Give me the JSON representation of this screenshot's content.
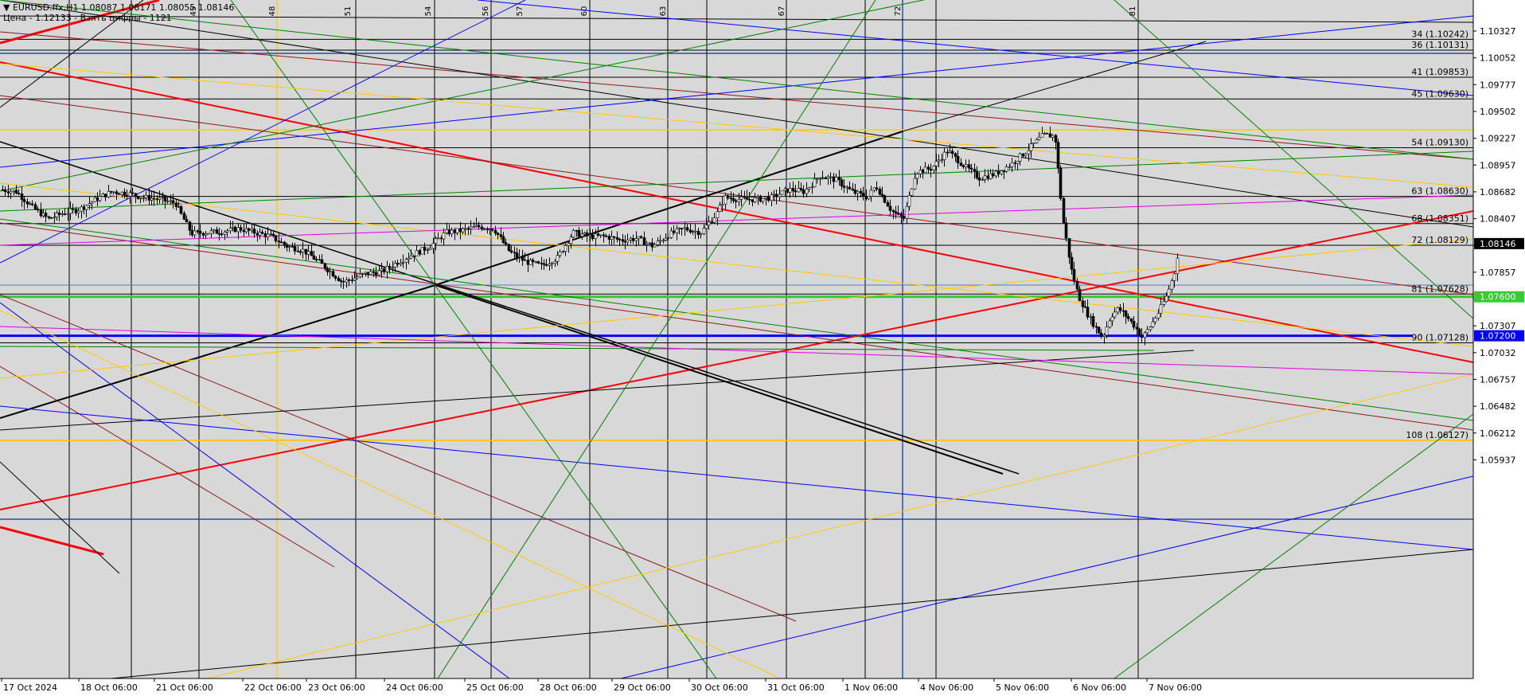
{
  "header": {
    "symbol_line": "▼ EURUSD.ffx,H1  1.08087 1.08171 1.08055 1.08146",
    "price_line": "Цена - 1.12133 - Взять цифры - 1121"
  },
  "colors": {
    "plot_bg": "#d8d8d8",
    "scale_bg": "#ffffff",
    "grid": "#000000",
    "bull_candle": "#000000",
    "bear_candle": "#000000",
    "red": "#ff0000",
    "darkred": "#8b1a1a",
    "blue": "#0000ff",
    "navy": "#003399",
    "green": "#008000",
    "lime": "#33cc33",
    "yellow": "#ffcc00",
    "magenta": "#e000e0",
    "black": "#000000"
  },
  "chart_data": {
    "type": "candlestick",
    "symbol": "EURUSD.ffx",
    "timeframe": "H1",
    "last_bar": {
      "open": 1.08087,
      "high": 1.08171,
      "low": 1.08055,
      "close": 1.08146
    },
    "current_price_label": "1.08146",
    "price_axis_ticks": [
      "1.10327",
      "1.10052",
      "1.09777",
      "1.09502",
      "1.09227",
      "1.08957",
      "1.08682",
      "1.08407",
      "1.08132",
      "1.07857",
      "1.07582",
      "1.07307",
      "1.07032",
      "1.06757",
      "1.06482",
      "1.06212",
      "1.05937"
    ],
    "ylim": [
      1.058,
      1.106
    ],
    "time_axis_labels": [
      "17 Oct 2024",
      "18 Oct 06:00",
      "21 Oct 06:00",
      "22 Oct 06:00",
      "23 Oct 06:00",
      "24 Oct 06:00",
      "25 Oct 06:00",
      "28 Oct 06:00",
      "29 Oct 06:00",
      "30 Oct 06:00",
      "31 Oct 06:00",
      "1 Nov 06:00",
      "4 Nov 06:00",
      "5 Nov 06:00",
      "6 Nov 06:00",
      "7 Nov 06:00"
    ],
    "top_labels": [
      "45",
      "48",
      "51",
      "54",
      "56",
      "57",
      "60",
      "63",
      "67",
      "72",
      "81"
    ],
    "level_labels": [
      {
        "text": "34 (1.10242)",
        "price": 1.10242
      },
      {
        "text": "36 (1.10131)",
        "price": 1.10131
      },
      {
        "text": "41 (1.09853)",
        "price": 1.09853
      },
      {
        "text": "45 (1.09630)",
        "price": 1.0963
      },
      {
        "text": "54 (1.09130)",
        "price": 1.0913
      },
      {
        "text": "63 (1.08630)",
        "price": 1.0863
      },
      {
        "text": "68 (1.08351)",
        "price": 1.08351
      },
      {
        "text": "72 (1.08129)",
        "price": 1.08129
      },
      {
        "text": "81 (1.07628)",
        "price": 1.07628
      },
      {
        "text": "90 (1.07128)",
        "price": 1.07128
      },
      {
        "text": "108 (1.06127)",
        "price": 1.06127
      }
    ],
    "marked_levels": [
      {
        "text": "1.07600",
        "price": 1.076,
        "color": "lime"
      },
      {
        "text": "1.07200",
        "price": 1.072,
        "color": "blue"
      }
    ],
    "close_path": [
      [
        0,
        1.087
      ],
      [
        20,
        1.0868
      ],
      [
        40,
        1.0852
      ],
      [
        60,
        1.084
      ],
      [
        80,
        1.0846
      ],
      [
        100,
        1.085
      ],
      [
        120,
        1.086
      ],
      [
        140,
        1.0868
      ],
      [
        160,
        1.0866
      ],
      [
        180,
        1.0862
      ],
      [
        200,
        1.086
      ],
      [
        220,
        1.0856
      ],
      [
        240,
        1.0825
      ],
      [
        260,
        1.0826
      ],
      [
        280,
        1.0827
      ],
      [
        300,
        1.083
      ],
      [
        320,
        1.0826
      ],
      [
        340,
        1.0822
      ],
      [
        360,
        1.0812
      ],
      [
        380,
        1.0808
      ],
      [
        400,
        1.0796
      ],
      [
        420,
        1.0782
      ],
      [
        430,
        1.0775
      ],
      [
        440,
        1.0778
      ],
      [
        460,
        1.0784
      ],
      [
        480,
        1.0786
      ],
      [
        500,
        1.0796
      ],
      [
        520,
        1.0804
      ],
      [
        540,
        1.0812
      ],
      [
        560,
        1.0826
      ],
      [
        580,
        1.0828
      ],
      [
        600,
        1.0832
      ],
      [
        620,
        1.083
      ],
      [
        640,
        1.0806
      ],
      [
        660,
        1.0796
      ],
      [
        680,
        1.0792
      ],
      [
        700,
        1.08
      ],
      [
        720,
        1.0826
      ],
      [
        740,
        1.0822
      ],
      [
        760,
        1.0822
      ],
      [
        780,
        1.0818
      ],
      [
        800,
        1.082
      ],
      [
        820,
        1.0812
      ],
      [
        840,
        1.0824
      ],
      [
        860,
        1.083
      ],
      [
        880,
        1.0826
      ],
      [
        900,
        1.0845
      ],
      [
        910,
        1.0862
      ],
      [
        930,
        1.086
      ],
      [
        950,
        1.086
      ],
      [
        970,
        1.0862
      ],
      [
        990,
        1.087
      ],
      [
        1010,
        1.0868
      ],
      [
        1030,
        1.0884
      ],
      [
        1050,
        1.088
      ],
      [
        1070,
        1.0868
      ],
      [
        1090,
        1.0862
      ],
      [
        1100,
        1.0874
      ],
      [
        1120,
        1.0848
      ],
      [
        1135,
        1.084
      ],
      [
        1150,
        1.0888
      ],
      [
        1170,
        1.0892
      ],
      [
        1190,
        1.091
      ],
      [
        1210,
        1.0895
      ],
      [
        1230,
        1.0882
      ],
      [
        1250,
        1.0886
      ],
      [
        1270,
        1.0896
      ],
      [
        1290,
        1.091
      ],
      [
        1310,
        1.0926
      ],
      [
        1325,
        1.0925
      ],
      [
        1335,
        1.084
      ],
      [
        1345,
        1.079
      ],
      [
        1355,
        1.076
      ],
      [
        1365,
        1.0744
      ],
      [
        1375,
        1.073
      ],
      [
        1385,
        1.0718
      ],
      [
        1395,
        1.074
      ],
      [
        1405,
        1.0748
      ],
      [
        1415,
        1.074
      ],
      [
        1425,
        1.073
      ],
      [
        1435,
        1.0718
      ],
      [
        1445,
        1.073
      ],
      [
        1455,
        1.0744
      ],
      [
        1465,
        1.076
      ],
      [
        1475,
        1.0784
      ],
      [
        1481,
        1.0814
      ]
    ]
  }
}
